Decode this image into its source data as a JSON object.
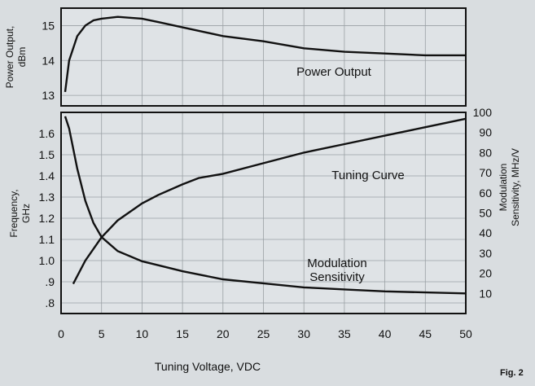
{
  "figure_label": "Fig. 2",
  "colors": {
    "paper": "#dfe3e6",
    "grid": "#9aa0a4",
    "ink": "#111111"
  },
  "chart_data": [
    {
      "type": "line",
      "panel": "top",
      "ylabel": "Power Output, dBm",
      "xlim": [
        0,
        50
      ],
      "ylim": [
        12.7,
        15.5
      ],
      "yticks": [
        13,
        14,
        15
      ],
      "grid": true,
      "annotations": [
        "Power Output"
      ],
      "series": [
        {
          "x": [
            0.5,
            1,
            2,
            3,
            4,
            5,
            7,
            10,
            12,
            15,
            20,
            25,
            30,
            35,
            40,
            45,
            50
          ],
          "values": [
            13.1,
            14.0,
            14.7,
            15.0,
            15.15,
            15.2,
            15.25,
            15.2,
            15.1,
            14.95,
            14.7,
            14.55,
            14.35,
            14.25,
            14.2,
            14.15,
            14.15
          ]
        }
      ]
    },
    {
      "type": "line",
      "panel": "bottom",
      "xlabel": "Tuning Voltage, VDC",
      "xlim": [
        0,
        50
      ],
      "xticks": [
        0,
        5,
        10,
        15,
        20,
        25,
        30,
        35,
        40,
        45,
        50
      ],
      "ylabel": "Frequency, GHz",
      "ylim": [
        0.75,
        1.7
      ],
      "yticks": [
        0.8,
        0.9,
        1.0,
        1.1,
        1.2,
        1.3,
        1.4,
        1.5,
        1.6
      ],
      "ytick_labels": [
        ".8",
        ".9",
        "1.0",
        "1.1",
        "1.2",
        "1.3",
        "1.4",
        "1.5",
        "1.6"
      ],
      "y2label": "Modulation Sensitivity, MHz/V",
      "y2lim": [
        0,
        100
      ],
      "y2ticks": [
        10,
        20,
        30,
        40,
        50,
        60,
        70,
        80,
        90,
        100
      ],
      "grid": true,
      "series": [
        {
          "name": "Tuning Curve",
          "axis": "left",
          "x": [
            1.5,
            3,
            5,
            7,
            10,
            12,
            15,
            17,
            20,
            25,
            30,
            35,
            40,
            45,
            50
          ],
          "values": [
            0.89,
            1.0,
            1.11,
            1.19,
            1.27,
            1.31,
            1.36,
            1.39,
            1.41,
            1.46,
            1.51,
            1.55,
            1.59,
            1.63,
            1.67
          ]
        },
        {
          "name": "Modulation Sensitivity",
          "axis": "right",
          "x": [
            0.5,
            1,
            2,
            3,
            4,
            5,
            7,
            10,
            12,
            15,
            20,
            25,
            30,
            35,
            40,
            45,
            50
          ],
          "values": [
            98,
            92,
            72,
            56,
            45,
            38,
            31,
            26,
            24,
            21,
            17,
            15,
            13,
            12,
            11,
            10.5,
            10
          ]
        }
      ]
    }
  ]
}
